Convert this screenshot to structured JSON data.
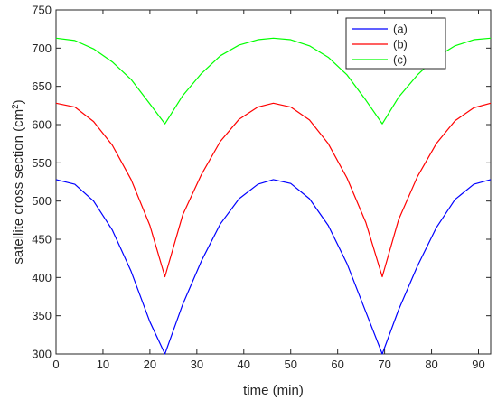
{
  "chart_data": {
    "type": "line",
    "xlabel": "time (min)",
    "ylabel": "satellite cross section (cm",
    "ylabel_sup": "2",
    "ylabel_close": ")",
    "xlim": [
      0,
      92.6
    ],
    "ylim": [
      300,
      750
    ],
    "xticks": [
      0,
      10,
      20,
      30,
      40,
      50,
      60,
      70,
      80,
      90
    ],
    "yticks": [
      300,
      350,
      400,
      450,
      500,
      550,
      600,
      650,
      700,
      750
    ],
    "grid": false,
    "legend_position": "top-right",
    "series": [
      {
        "name": "(a)",
        "color": "#0000ff",
        "x": [
          0,
          4,
          8,
          12,
          16,
          20,
          23.2,
          27,
          31,
          35,
          39,
          43,
          46.3,
          50,
          54,
          58,
          62,
          66,
          69.5,
          73,
          77,
          81,
          85,
          89,
          92.6
        ],
        "y": [
          528,
          522,
          500,
          462,
          408,
          342,
          300,
          365,
          422,
          470,
          503,
          522,
          528,
          523,
          503,
          468,
          418,
          355,
          300,
          358,
          415,
          465,
          502,
          522,
          528
        ]
      },
      {
        "name": "(b)",
        "color": "#ff0000",
        "x": [
          0,
          4,
          8,
          12,
          16,
          20,
          23.2,
          27,
          31,
          35,
          39,
          43,
          46.3,
          50,
          54,
          58,
          62,
          66,
          69.5,
          73,
          77,
          81,
          85,
          89,
          92.6
        ],
        "y": [
          628,
          623,
          604,
          573,
          528,
          468,
          401,
          482,
          535,
          578,
          607,
          623,
          628,
          623,
          606,
          575,
          530,
          472,
          401,
          476,
          532,
          575,
          605,
          622,
          628
        ]
      },
      {
        "name": "(c)",
        "color": "#00ff00",
        "x": [
          0,
          4,
          8,
          12,
          16,
          20,
          23.2,
          27,
          31,
          35,
          39,
          43,
          46.3,
          50,
          54,
          58,
          62,
          66,
          69.5,
          73,
          77,
          81,
          85,
          89,
          92.6
        ],
        "y": [
          713,
          710,
          699,
          682,
          659,
          627,
          601,
          638,
          667,
          690,
          704,
          711,
          713,
          711,
          703,
          688,
          665,
          632,
          601,
          636,
          665,
          688,
          703,
          711,
          713
        ]
      }
    ]
  }
}
